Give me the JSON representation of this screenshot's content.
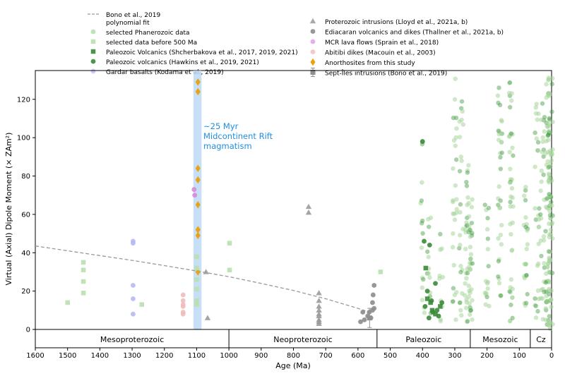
{
  "chart_data": {
    "type": "scatter",
    "xlabel": "Age (Ma)",
    "ylabel": "Virtual (Axial) Dipole Moment (× ZAm²)",
    "xlim": [
      1600,
      0
    ],
    "ylim": [
      0,
      135
    ],
    "x_ticks": [
      1600,
      1500,
      1400,
      1300,
      1200,
      1100,
      1000,
      900,
      800,
      700,
      600,
      500,
      400,
      300,
      200,
      100,
      0
    ],
    "y_ticks": [
      0,
      20,
      40,
      60,
      80,
      100,
      120
    ],
    "grid": false,
    "legend_position": "top",
    "annotation": {
      "lines": [
        "~25 Myr",
        "Midcontinent Rift",
        "magmatism"
      ],
      "color": "#1f8fe0",
      "band": [
        1110,
        1085
      ],
      "band_color": "#bcd9f5"
    },
    "eras": [
      {
        "name": "Mesoproterozoic",
        "start": 1600,
        "end": 1000
      },
      {
        "name": "Neoproterozoic",
        "start": 1000,
        "end": 541
      },
      {
        "name": "Paleozoic",
        "start": 541,
        "end": 252
      },
      {
        "name": "Mesozoic",
        "start": 252,
        "end": 66
      },
      {
        "name": "Cz",
        "start": 66,
        "end": 0
      }
    ],
    "legend_left": [
      {
        "label": "Bono et al., 2019",
        "label2": "polynomial fit",
        "marker": "dash",
        "color": "#999999"
      },
      {
        "label": "selected Phanerozoic data",
        "marker": "circle",
        "color": "#b8e0ae"
      },
      {
        "label": "selected data before 500 Ma",
        "marker": "square",
        "color": "#b8e0ae"
      },
      {
        "label": "Paleozoic Volcanics (Shcherbakova et al., 2017, 2019, 2021)",
        "marker": "square",
        "color": "#3a8a3a"
      },
      {
        "label": "Paleozoic volcanics (Hawkins et al., 2019, 2021)",
        "marker": "circle",
        "color": "#3a8a3a"
      },
      {
        "label": "Gardar basalts (Kodama et al., 2019)",
        "marker": "circle",
        "color": "#c4c4f5"
      }
    ],
    "legend_right": [
      {
        "label": "Proterozoic intrusions (Lloyd et al., 2021a, b)",
        "marker": "triangle",
        "color": "#a0a0a0"
      },
      {
        "label": "Ediacaran volcanics and dikes (Thallner et al., 2021a, b)",
        "marker": "circle",
        "color": "#8c8c8c"
      },
      {
        "label": "MCR lava flows (Sprain et al., 2018)",
        "marker": "circle",
        "color": "#e4a6e4"
      },
      {
        "label": "Abitibi dikes (Macouin et al., 2003)",
        "marker": "circle",
        "color": "#f2c4c4"
      },
      {
        "label": "Anorthosites from this study",
        "marker": "diamond",
        "color": "#e8a317"
      },
      {
        "label": "Sept-Îles intrusions (Bono et al., 2019)",
        "marker": "errsquare",
        "color": "#909090"
      }
    ],
    "polynomial_fit": {
      "x": [
        1600,
        1500,
        1400,
        1300,
        1200,
        1100,
        1000,
        900,
        800,
        700,
        600,
        565
      ],
      "y": [
        43.5,
        41.0,
        38.5,
        36.0,
        33.3,
        30.5,
        27.5,
        24.0,
        20.3,
        16.0,
        11.0,
        9.0
      ]
    },
    "series": [
      {
        "name": "Anorthosites from this study",
        "marker": "diamond",
        "color": "#e8a317",
        "x": [
          1096,
          1096,
          1096,
          1096,
          1096,
          1096,
          1096,
          1096
        ],
        "y": [
          129,
          124,
          84,
          78,
          65,
          52,
          49,
          30
        ]
      },
      {
        "name": "MCR lava flows (Sprain et al., 2018)",
        "marker": "circle",
        "color": "#d88ad8",
        "x": [
          1108,
          1106
        ],
        "y": [
          73,
          70
        ]
      },
      {
        "name": "Gardar basalts (Kodama et al., 2019)",
        "marker": "circle",
        "color": "#b8b8f2",
        "x": [
          1297,
          1297,
          1297,
          1297,
          1297
        ],
        "y": [
          46,
          45,
          23,
          16,
          8
        ]
      },
      {
        "name": "Abitibi dikes (Macouin et al., 2003)",
        "marker": "circle",
        "color": "#efbcbc",
        "x": [
          1142,
          1142,
          1142,
          1142,
          1142,
          1142
        ],
        "y": [
          18,
          15,
          13,
          12,
          9,
          8
        ]
      },
      {
        "name": "Proterozoic intrusions (Lloyd et al., 2021a, b)",
        "marker": "triangle",
        "color": "#9a9a9a",
        "x": [
          1071,
          1066,
          753,
          753,
          721,
          721,
          721,
          721,
          721,
          721,
          721,
          721,
          721
        ],
        "y": [
          30,
          6,
          64,
          61,
          19,
          15,
          12,
          10,
          8,
          7,
          5,
          4,
          3
        ]
      },
      {
        "name": "Ediacaran volcanics and dikes (Thallner et al., 2021a, b)",
        "marker": "circle",
        "color": "#8c8c8c",
        "x": [
          592,
          585,
          580,
          570,
          565,
          560,
          555,
          555,
          553,
          550,
          550
        ],
        "y": [
          4,
          9,
          5,
          7,
          9,
          6,
          14,
          10,
          18,
          23,
          11
        ]
      },
      {
        "name": "Sept-Îles intrusions (Bono et al., 2019)",
        "marker": "errsquare",
        "color": "#909090",
        "x": [
          564
        ],
        "y": [
          6
        ],
        "err": [
          5
        ]
      },
      {
        "name": "selected data before 500 Ma",
        "marker": "square",
        "color": "#b8e0ae",
        "x": [
          1500,
          1451,
          1451,
          1451,
          1451,
          1270,
          1100,
          1100,
          1100,
          1100,
          1100,
          1100,
          998,
          998,
          530
        ],
        "y": [
          14,
          35,
          31,
          25,
          19,
          13,
          38,
          32,
          26,
          21,
          15,
          13,
          45,
          31,
          30
        ]
      },
      {
        "name": "Paleozoic Volcanics (Shcherbakova et al., 2017, 2019, 2021)",
        "marker": "square",
        "color": "#3a8a3a",
        "x": [
          390,
          385,
          375,
          370,
          360,
          345
        ],
        "y": [
          32,
          16,
          14,
          10,
          8,
          12
        ]
      },
      {
        "name": "Paleozoic volcanics (Hawkins et al., 2019, 2021)",
        "marker": "circle",
        "color": "#3a8a3a",
        "x": [
          400,
          395,
          392,
          385,
          380,
          378,
          372,
          368,
          360,
          355,
          350,
          340
        ],
        "y": [
          98,
          46,
          12,
          20,
          6,
          44,
          15,
          9,
          24,
          10,
          7,
          14
        ]
      }
    ],
    "phanerozoic_clusters": [
      {
        "x": 400,
        "y_min": 4,
        "y_max": 98,
        "n": 14
      },
      {
        "x": 380,
        "y_min": 4,
        "y_max": 60,
        "n": 12
      },
      {
        "x": 342,
        "y_min": 4,
        "y_max": 55,
        "n": 10
      },
      {
        "x": 300,
        "y_min": 4,
        "y_max": 132,
        "n": 28
      },
      {
        "x": 280,
        "y_min": 4,
        "y_max": 120,
        "n": 24
      },
      {
        "x": 262,
        "y_min": 4,
        "y_max": 86,
        "n": 30
      },
      {
        "x": 250,
        "y_min": 4,
        "y_max": 70,
        "n": 30
      },
      {
        "x": 200,
        "y_min": 12,
        "y_max": 65,
        "n": 18
      },
      {
        "x": 160,
        "y_min": 6,
        "y_max": 128,
        "n": 36
      },
      {
        "x": 125,
        "y_min": 4,
        "y_max": 132,
        "n": 42
      },
      {
        "x": 80,
        "y_min": 12,
        "y_max": 75,
        "n": 22
      },
      {
        "x": 45,
        "y_min": 4,
        "y_max": 120,
        "n": 28
      },
      {
        "x": 28,
        "y_min": 4,
        "y_max": 120,
        "n": 30
      },
      {
        "x": 12,
        "y_min": 0,
        "y_max": 132,
        "n": 60
      },
      {
        "x": 3,
        "y_min": 0,
        "y_max": 132,
        "n": 70
      }
    ]
  }
}
